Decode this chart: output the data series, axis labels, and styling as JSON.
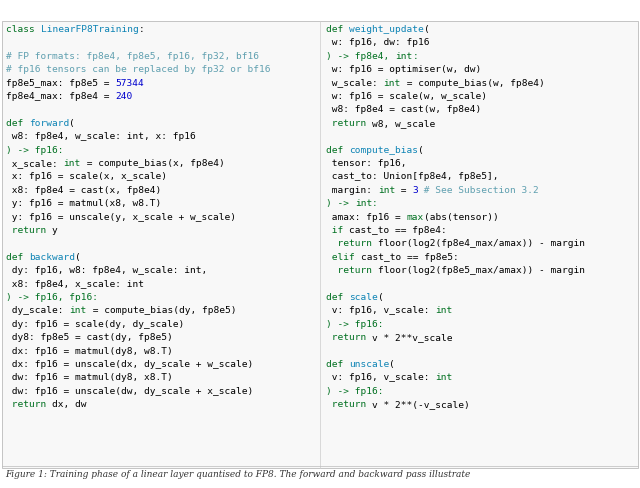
{
  "caption": "Figure 1: Training phase of a linear layer quantised to FP8. The forward and backward pass illustrate",
  "left_column": [
    [
      {
        "t": "class ",
        "c": "#007020"
      },
      {
        "t": "LinearFP8Training",
        "c": "#0e84b5"
      },
      {
        "t": ":",
        "c": "#000000"
      }
    ],
    [],
    [
      {
        "t": "# FP formats: fp8e4, fp8e5, fp16, fp32, bf16",
        "c": "#60a0b0"
      }
    ],
    [
      {
        "t": "# fp16 tensors can be replaced by fp32 or bf16",
        "c": "#60a0b0"
      }
    ],
    [
      {
        "t": "fp8e5_max: fp8e5 = ",
        "c": "#000000"
      },
      {
        "t": "57344",
        "c": "#0000cd"
      }
    ],
    [
      {
        "t": "fp8e4_max: fp8e4 = ",
        "c": "#000000"
      },
      {
        "t": "240",
        "c": "#0000cd"
      }
    ],
    [],
    [
      {
        "t": "def ",
        "c": "#007020"
      },
      {
        "t": "forward",
        "c": "#0e84b5"
      },
      {
        "t": "(",
        "c": "#000000"
      }
    ],
    [
      {
        "t": " w8: fp8e4, w_scale: int, x: fp16",
        "c": "#000000"
      }
    ],
    [
      {
        "t": ") -> fp16:",
        "c": "#007020"
      }
    ],
    [
      {
        "t": " x_scale: ",
        "c": "#000000"
      },
      {
        "t": "int",
        "c": "#007020"
      },
      {
        "t": " = compute_bias(x, fp8e4)",
        "c": "#000000"
      }
    ],
    [
      {
        "t": " x: fp16 = scale(x, x_scale)",
        "c": "#000000"
      }
    ],
    [
      {
        "t": " x8: fp8e4 = cast(x, fp8e4)",
        "c": "#000000"
      }
    ],
    [
      {
        "t": " y: fp16 = matmul(x8, w8.T)",
        "c": "#000000"
      }
    ],
    [
      {
        "t": " y: fp16 = unscale(y, x_scale + w_scale)",
        "c": "#000000"
      }
    ],
    [
      {
        "t": " return ",
        "c": "#007020"
      },
      {
        "t": "y",
        "c": "#000000"
      }
    ],
    [],
    [
      {
        "t": "def ",
        "c": "#007020"
      },
      {
        "t": "backward",
        "c": "#0e84b5"
      },
      {
        "t": "(",
        "c": "#000000"
      }
    ],
    [
      {
        "t": " dy: fp16, w8: fp8e4, w_scale: int,",
        "c": "#000000"
      }
    ],
    [
      {
        "t": " x8: fp8e4, x_scale: int",
        "c": "#000000"
      }
    ],
    [
      {
        "t": ") -> fp16, fp16:",
        "c": "#007020"
      }
    ],
    [
      {
        "t": " dy_scale: ",
        "c": "#000000"
      },
      {
        "t": "int",
        "c": "#007020"
      },
      {
        "t": " = compute_bias(dy, fp8e5)",
        "c": "#000000"
      }
    ],
    [
      {
        "t": " dy: fp16 = scale(dy, dy_scale)",
        "c": "#000000"
      }
    ],
    [
      {
        "t": " dy8: fp8e5 = cast(dy, fp8e5)",
        "c": "#000000"
      }
    ],
    [
      {
        "t": " dx: fp16 = matmul(dy8, w8.T)",
        "c": "#000000"
      }
    ],
    [
      {
        "t": " dx: fp16 = unscale(dx, dy_scale + w_scale)",
        "c": "#000000"
      }
    ],
    [
      {
        "t": " dw: fp16 = matmul(dy8, x8.T)",
        "c": "#000000"
      }
    ],
    [
      {
        "t": " dw: fp16 = unscale(dw, dy_scale + x_scale)",
        "c": "#000000"
      }
    ],
    [
      {
        "t": " return ",
        "c": "#007020"
      },
      {
        "t": "dx, dw",
        "c": "#000000"
      }
    ]
  ],
  "right_column": [
    [
      {
        "t": "def ",
        "c": "#007020"
      },
      {
        "t": "weight_update",
        "c": "#0e84b5"
      },
      {
        "t": "(",
        "c": "#000000"
      }
    ],
    [
      {
        "t": " w: fp16, dw: fp16",
        "c": "#000000"
      }
    ],
    [
      {
        "t": ") -> fp8e4, ",
        "c": "#007020"
      },
      {
        "t": "int",
        "c": "#007020"
      },
      {
        "t": ":",
        "c": "#007020"
      }
    ],
    [
      {
        "t": " w: fp16 = optimiser(w, dw)",
        "c": "#000000"
      }
    ],
    [
      {
        "t": " w_scale: ",
        "c": "#000000"
      },
      {
        "t": "int",
        "c": "#007020"
      },
      {
        "t": " = compute_bias(w, fp8e4)",
        "c": "#000000"
      }
    ],
    [
      {
        "t": " w: fp16 = scale(w, w_scale)",
        "c": "#000000"
      }
    ],
    [
      {
        "t": " w8: fp8e4 = cast(w, fp8e4)",
        "c": "#000000"
      }
    ],
    [
      {
        "t": " return ",
        "c": "#007020"
      },
      {
        "t": "w8, w_scale",
        "c": "#000000"
      }
    ],
    [],
    [
      {
        "t": "def ",
        "c": "#007020"
      },
      {
        "t": "compute_bias",
        "c": "#0e84b5"
      },
      {
        "t": "(",
        "c": "#000000"
      }
    ],
    [
      {
        "t": " tensor: fp16,",
        "c": "#000000"
      }
    ],
    [
      {
        "t": " cast_to: Union[fp8e4, fp8e5],",
        "c": "#000000"
      }
    ],
    [
      {
        "t": " margin: ",
        "c": "#000000"
      },
      {
        "t": "int",
        "c": "#007020"
      },
      {
        "t": " = ",
        "c": "#000000"
      },
      {
        "t": "3",
        "c": "#0000cd"
      },
      {
        "t": " # See Subsection 3.2",
        "c": "#60a0b0"
      }
    ],
    [
      {
        "t": ") -> ",
        "c": "#007020"
      },
      {
        "t": "int",
        "c": "#007020"
      },
      {
        "t": ":",
        "c": "#007020"
      }
    ],
    [
      {
        "t": " amax: fp16 = ",
        "c": "#000000"
      },
      {
        "t": "max",
        "c": "#007020"
      },
      {
        "t": "(abs(tensor))",
        "c": "#000000"
      }
    ],
    [
      {
        "t": " if ",
        "c": "#007020"
      },
      {
        "t": "cast_to == fp8e4:",
        "c": "#000000"
      }
    ],
    [
      {
        "t": "  return ",
        "c": "#007020"
      },
      {
        "t": "floor(log2(fp8e4_max/amax)) - margin",
        "c": "#000000"
      }
    ],
    [
      {
        "t": " elif ",
        "c": "#007020"
      },
      {
        "t": "cast_to == fp8e5:",
        "c": "#000000"
      }
    ],
    [
      {
        "t": "  return ",
        "c": "#007020"
      },
      {
        "t": "floor(log2(fp8e5_max/amax)) - margin",
        "c": "#000000"
      }
    ],
    [],
    [
      {
        "t": "def ",
        "c": "#007020"
      },
      {
        "t": "scale",
        "c": "#0e84b5"
      },
      {
        "t": "(",
        "c": "#000000"
      }
    ],
    [
      {
        "t": " v: fp16, v_scale: ",
        "c": "#000000"
      },
      {
        "t": "int",
        "c": "#007020"
      }
    ],
    [
      {
        "t": ") -> fp16:",
        "c": "#007020"
      }
    ],
    [
      {
        "t": " return ",
        "c": "#007020"
      },
      {
        "t": "v * 2**v_scale",
        "c": "#000000"
      }
    ],
    [],
    [
      {
        "t": "def ",
        "c": "#007020"
      },
      {
        "t": "unscale",
        "c": "#0e84b5"
      },
      {
        "t": "(",
        "c": "#000000"
      }
    ],
    [
      {
        "t": " v: fp16, v_scale: ",
        "c": "#000000"
      },
      {
        "t": "int",
        "c": "#007020"
      }
    ],
    [
      {
        "t": ") -> fp16:",
        "c": "#007020"
      }
    ],
    [
      {
        "t": " return ",
        "c": "#007020"
      },
      {
        "t": "v * 2**(-v_scale)",
        "c": "#000000"
      }
    ]
  ]
}
